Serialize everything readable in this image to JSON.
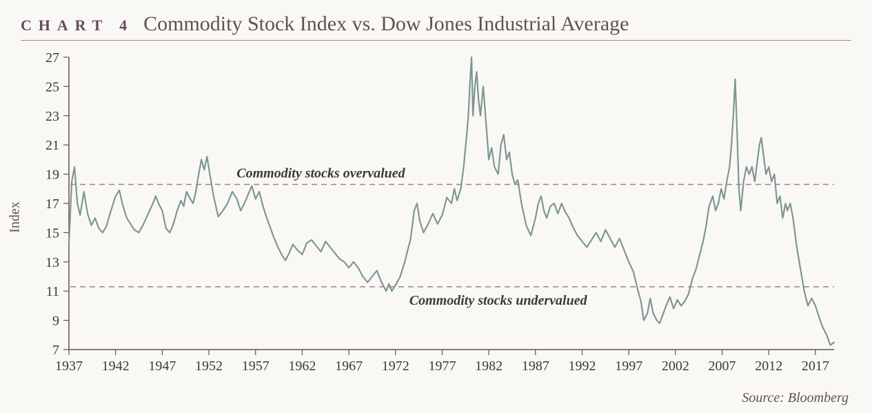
{
  "header": {
    "chart_label": "CHART 4",
    "title": "Commodity Stock Index vs. Dow Jones Industrial Average"
  },
  "source": "Source: Bloomberg",
  "y_axis_label": "Index",
  "chart": {
    "type": "line",
    "background_color": "#faf8f5",
    "line_color": "#7d9791",
    "line_width": 2.2,
    "axis_color": "#5f5348",
    "tick_font_size": 20,
    "tick_color": "#3a3a3a",
    "xlim": [
      1937,
      2019
    ],
    "ylim": [
      7,
      27
    ],
    "xtick_step": 5,
    "xticks": [
      1937,
      1942,
      1947,
      1952,
      1957,
      1962,
      1967,
      1972,
      1977,
      1982,
      1987,
      1992,
      1997,
      2002,
      2007,
      2012,
      2017
    ],
    "yticks": [
      7,
      9,
      11,
      13,
      15,
      17,
      19,
      21,
      23,
      25,
      27
    ],
    "threshold_lines": [
      {
        "y": 18.3,
        "label": "Commodity stocks overvalued",
        "label_x": 1964,
        "label_pos": "above",
        "dash": "8,6",
        "color": "#9e7d93",
        "width": 1.5,
        "font_size": 20,
        "font_style": "italic",
        "font_weight": "bold",
        "font_color": "#3a3a3a"
      },
      {
        "y": 11.3,
        "label": "Commodity stocks undervalued",
        "label_x": 1983,
        "label_pos": "below",
        "dash": "8,6",
        "color": "#9e7d93",
        "width": 1.5,
        "font_size": 20,
        "font_style": "italic",
        "font_weight": "bold",
        "font_color": "#3a3a3a"
      }
    ],
    "series": [
      [
        1937.0,
        14.3
      ],
      [
        1937.3,
        18.5
      ],
      [
        1937.6,
        19.5
      ],
      [
        1937.9,
        17.0
      ],
      [
        1938.2,
        16.2
      ],
      [
        1938.6,
        17.8
      ],
      [
        1939.0,
        16.3
      ],
      [
        1939.4,
        15.5
      ],
      [
        1939.8,
        16.0
      ],
      [
        1940.2,
        15.3
      ],
      [
        1940.6,
        15.0
      ],
      [
        1941.0,
        15.4
      ],
      [
        1941.5,
        16.5
      ],
      [
        1942.0,
        17.5
      ],
      [
        1942.4,
        17.9
      ],
      [
        1942.8,
        16.8
      ],
      [
        1943.2,
        16.0
      ],
      [
        1943.6,
        15.6
      ],
      [
        1944.0,
        15.2
      ],
      [
        1944.5,
        15.0
      ],
      [
        1945.0,
        15.6
      ],
      [
        1945.5,
        16.3
      ],
      [
        1946.0,
        17.0
      ],
      [
        1946.3,
        17.5
      ],
      [
        1946.6,
        17.0
      ],
      [
        1947.0,
        16.5
      ],
      [
        1947.4,
        15.3
      ],
      [
        1947.8,
        15.0
      ],
      [
        1948.2,
        15.6
      ],
      [
        1948.6,
        16.5
      ],
      [
        1949.0,
        17.2
      ],
      [
        1949.3,
        16.8
      ],
      [
        1949.6,
        17.8
      ],
      [
        1950.0,
        17.3
      ],
      [
        1950.3,
        17.0
      ],
      [
        1950.6,
        17.8
      ],
      [
        1950.9,
        19.0
      ],
      [
        1951.2,
        20.0
      ],
      [
        1951.5,
        19.3
      ],
      [
        1951.8,
        20.2
      ],
      [
        1952.1,
        19.0
      ],
      [
        1952.5,
        17.5
      ],
      [
        1953.0,
        16.1
      ],
      [
        1953.5,
        16.5
      ],
      [
        1954.0,
        17.0
      ],
      [
        1954.5,
        17.8
      ],
      [
        1955.0,
        17.3
      ],
      [
        1955.4,
        16.5
      ],
      [
        1955.8,
        17.0
      ],
      [
        1956.2,
        17.6
      ],
      [
        1956.6,
        18.2
      ],
      [
        1957.0,
        17.3
      ],
      [
        1957.4,
        17.8
      ],
      [
        1957.8,
        16.8
      ],
      [
        1958.2,
        16.0
      ],
      [
        1958.6,
        15.3
      ],
      [
        1959.0,
        14.6
      ],
      [
        1959.4,
        14.0
      ],
      [
        1959.8,
        13.5
      ],
      [
        1960.2,
        13.1
      ],
      [
        1960.6,
        13.6
      ],
      [
        1961.0,
        14.2
      ],
      [
        1961.5,
        13.8
      ],
      [
        1962.0,
        13.5
      ],
      [
        1962.5,
        14.3
      ],
      [
        1963.0,
        14.5
      ],
      [
        1963.5,
        14.1
      ],
      [
        1964.0,
        13.7
      ],
      [
        1964.5,
        14.4
      ],
      [
        1965.0,
        14.0
      ],
      [
        1965.5,
        13.6
      ],
      [
        1966.0,
        13.2
      ],
      [
        1966.5,
        13.0
      ],
      [
        1967.0,
        12.6
      ],
      [
        1967.5,
        13.0
      ],
      [
        1968.0,
        12.6
      ],
      [
        1968.5,
        12.0
      ],
      [
        1969.0,
        11.6
      ],
      [
        1969.5,
        12.0
      ],
      [
        1970.0,
        12.4
      ],
      [
        1970.5,
        11.6
      ],
      [
        1971.0,
        11.0
      ],
      [
        1971.3,
        11.5
      ],
      [
        1971.6,
        11.0
      ],
      [
        1972.0,
        11.4
      ],
      [
        1972.5,
        12.0
      ],
      [
        1973.0,
        13.0
      ],
      [
        1973.3,
        13.8
      ],
      [
        1973.6,
        14.5
      ],
      [
        1974.0,
        16.5
      ],
      [
        1974.3,
        17.0
      ],
      [
        1974.6,
        15.8
      ],
      [
        1975.0,
        15.0
      ],
      [
        1975.5,
        15.6
      ],
      [
        1976.0,
        16.3
      ],
      [
        1976.5,
        15.6
      ],
      [
        1977.0,
        16.2
      ],
      [
        1977.5,
        17.4
      ],
      [
        1978.0,
        17.0
      ],
      [
        1978.3,
        18.0
      ],
      [
        1978.6,
        17.2
      ],
      [
        1979.0,
        18.0
      ],
      [
        1979.3,
        19.5
      ],
      [
        1979.6,
        21.5
      ],
      [
        1979.8,
        23.0
      ],
      [
        1980.0,
        25.5
      ],
      [
        1980.15,
        27.0
      ],
      [
        1980.3,
        23.0
      ],
      [
        1980.5,
        25.0
      ],
      [
        1980.7,
        26.0
      ],
      [
        1980.9,
        24.0
      ],
      [
        1981.1,
        23.0
      ],
      [
        1981.4,
        25.0
      ],
      [
        1981.7,
        22.5
      ],
      [
        1982.0,
        20.0
      ],
      [
        1982.3,
        20.8
      ],
      [
        1982.6,
        19.5
      ],
      [
        1983.0,
        19.0
      ],
      [
        1983.3,
        21.0
      ],
      [
        1983.6,
        21.7
      ],
      [
        1983.9,
        20.0
      ],
      [
        1984.2,
        20.5
      ],
      [
        1984.5,
        19.0
      ],
      [
        1984.8,
        18.3
      ],
      [
        1985.1,
        18.6
      ],
      [
        1985.5,
        17.0
      ],
      [
        1986.0,
        15.5
      ],
      [
        1986.5,
        14.8
      ],
      [
        1987.0,
        16.0
      ],
      [
        1987.3,
        17.0
      ],
      [
        1987.6,
        17.5
      ],
      [
        1987.9,
        16.5
      ],
      [
        1988.2,
        16.0
      ],
      [
        1988.6,
        16.8
      ],
      [
        1989.0,
        17.0
      ],
      [
        1989.4,
        16.3
      ],
      [
        1989.8,
        17.0
      ],
      [
        1990.2,
        16.4
      ],
      [
        1990.6,
        16.0
      ],
      [
        1991.0,
        15.4
      ],
      [
        1991.5,
        14.8
      ],
      [
        1992.0,
        14.4
      ],
      [
        1992.5,
        14.0
      ],
      [
        1993.0,
        14.5
      ],
      [
        1993.5,
        15.0
      ],
      [
        1994.0,
        14.4
      ],
      [
        1994.5,
        15.2
      ],
      [
        1995.0,
        14.6
      ],
      [
        1995.5,
        14.0
      ],
      [
        1996.0,
        14.6
      ],
      [
        1996.5,
        13.8
      ],
      [
        1997.0,
        13.0
      ],
      [
        1997.5,
        12.3
      ],
      [
        1998.0,
        11.0
      ],
      [
        1998.3,
        10.3
      ],
      [
        1998.6,
        9.0
      ],
      [
        1999.0,
        9.5
      ],
      [
        1999.3,
        10.5
      ],
      [
        1999.6,
        9.5
      ],
      [
        2000.0,
        9.0
      ],
      [
        2000.3,
        8.8
      ],
      [
        2000.6,
        9.3
      ],
      [
        2001.0,
        10.0
      ],
      [
        2001.4,
        10.6
      ],
      [
        2001.8,
        9.8
      ],
      [
        2002.2,
        10.4
      ],
      [
        2002.6,
        10.0
      ],
      [
        2003.0,
        10.3
      ],
      [
        2003.4,
        10.8
      ],
      [
        2003.8,
        11.8
      ],
      [
        2004.2,
        12.5
      ],
      [
        2004.6,
        13.5
      ],
      [
        2005.0,
        14.5
      ],
      [
        2005.3,
        15.5
      ],
      [
        2005.6,
        16.8
      ],
      [
        2006.0,
        17.5
      ],
      [
        2006.3,
        16.5
      ],
      [
        2006.6,
        17.0
      ],
      [
        2006.9,
        18.0
      ],
      [
        2007.2,
        17.3
      ],
      [
        2007.5,
        18.5
      ],
      [
        2007.8,
        19.5
      ],
      [
        2008.0,
        21.0
      ],
      [
        2008.2,
        23.0
      ],
      [
        2008.4,
        25.5
      ],
      [
        2008.6,
        22.0
      ],
      [
        2008.8,
        18.0
      ],
      [
        2009.0,
        16.5
      ],
      [
        2009.3,
        18.5
      ],
      [
        2009.6,
        19.5
      ],
      [
        2009.9,
        19.0
      ],
      [
        2010.2,
        19.5
      ],
      [
        2010.5,
        18.5
      ],
      [
        2010.8,
        20.0
      ],
      [
        2011.0,
        21.0
      ],
      [
        2011.2,
        21.5
      ],
      [
        2011.4,
        20.5
      ],
      [
        2011.7,
        19.0
      ],
      [
        2012.0,
        19.5
      ],
      [
        2012.3,
        18.5
      ],
      [
        2012.6,
        19.0
      ],
      [
        2012.9,
        17.0
      ],
      [
        2013.2,
        17.5
      ],
      [
        2013.5,
        16.0
      ],
      [
        2013.8,
        17.0
      ],
      [
        2014.0,
        16.5
      ],
      [
        2014.3,
        17.0
      ],
      [
        2014.6,
        16.0
      ],
      [
        2015.0,
        14.0
      ],
      [
        2015.4,
        12.5
      ],
      [
        2015.8,
        11.0
      ],
      [
        2016.2,
        10.0
      ],
      [
        2016.6,
        10.5
      ],
      [
        2017.0,
        10.0
      ],
      [
        2017.4,
        9.2
      ],
      [
        2017.8,
        8.5
      ],
      [
        2018.2,
        8.0
      ],
      [
        2018.6,
        7.3
      ],
      [
        2019.0,
        7.5
      ]
    ]
  }
}
